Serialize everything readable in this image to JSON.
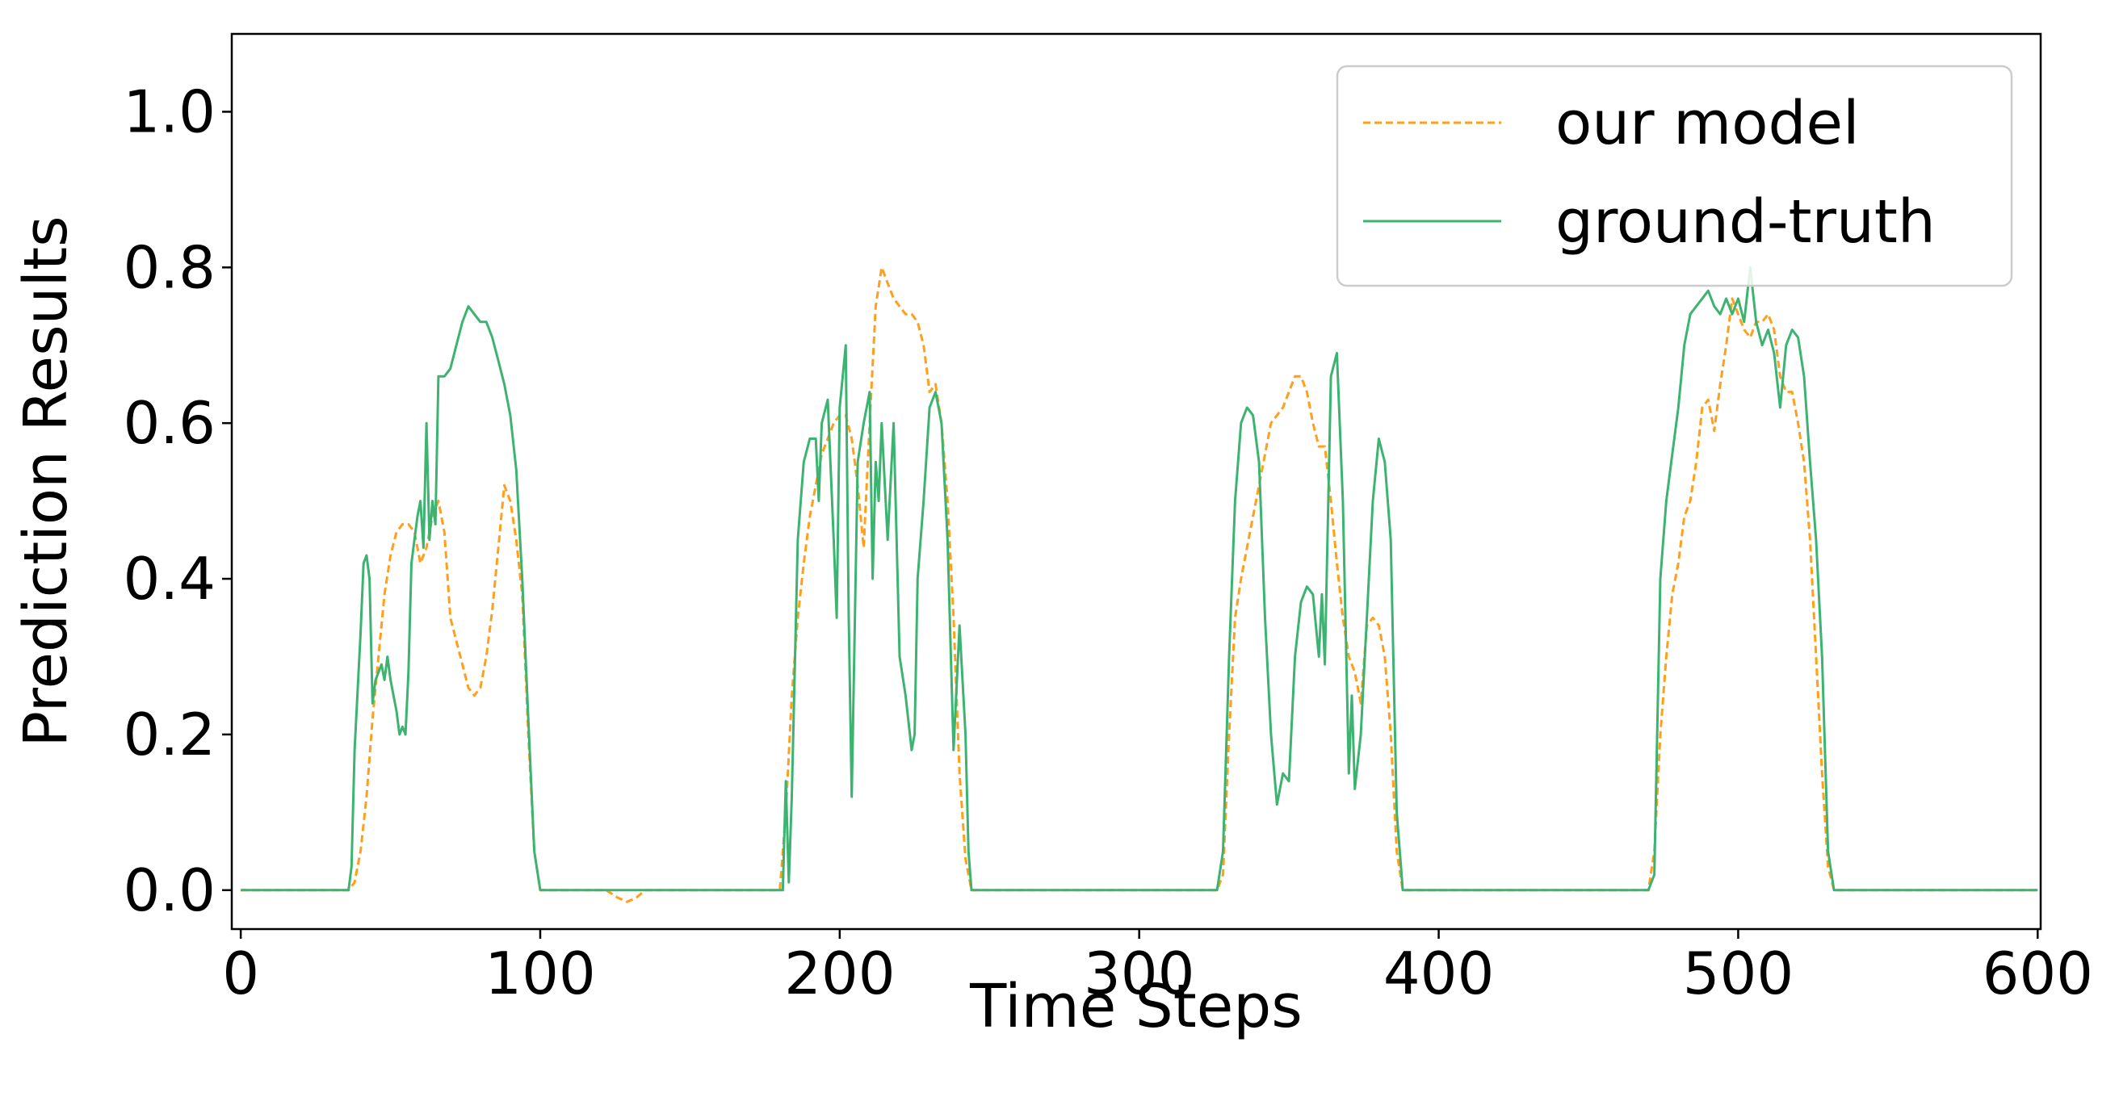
{
  "chart_data": {
    "type": "line",
    "title": "",
    "xlabel": "Time Steps",
    "ylabel": "Prediction Results",
    "xlim": [
      -3,
      601
    ],
    "ylim": [
      -0.05,
      1.1
    ],
    "xticks": [
      0,
      100,
      200,
      300,
      400,
      500,
      600
    ],
    "xtick_labels": [
      "0",
      "100",
      "200",
      "300",
      "400",
      "500",
      "600"
    ],
    "yticks": [
      0.0,
      0.2,
      0.4,
      0.6,
      0.8,
      1.0
    ],
    "ytick_labels": [
      "0.0",
      "0.2",
      "0.4",
      "0.6",
      "0.8",
      "1.0"
    ],
    "grid": false,
    "legend_position": "top-right",
    "series": [
      {
        "name": "our model",
        "color": "#ff9f1c",
        "style": "dashed",
        "points": [
          [
            0,
            0
          ],
          [
            36,
            0
          ],
          [
            38,
            0.01
          ],
          [
            40,
            0.05
          ],
          [
            42,
            0.12
          ],
          [
            44,
            0.22
          ],
          [
            46,
            0.3
          ],
          [
            48,
            0.38
          ],
          [
            50,
            0.43
          ],
          [
            52,
            0.46
          ],
          [
            54,
            0.47
          ],
          [
            56,
            0.47
          ],
          [
            58,
            0.46
          ],
          [
            60,
            0.42
          ],
          [
            62,
            0.44
          ],
          [
            64,
            0.48
          ],
          [
            66,
            0.5
          ],
          [
            68,
            0.46
          ],
          [
            70,
            0.35
          ],
          [
            72,
            0.32
          ],
          [
            74,
            0.29
          ],
          [
            76,
            0.26
          ],
          [
            78,
            0.25
          ],
          [
            80,
            0.26
          ],
          [
            82,
            0.3
          ],
          [
            84,
            0.36
          ],
          [
            86,
            0.44
          ],
          [
            88,
            0.52
          ],
          [
            90,
            0.5
          ],
          [
            92,
            0.45
          ],
          [
            94,
            0.38
          ],
          [
            96,
            0.2
          ],
          [
            98,
            0.05
          ],
          [
            100,
            0
          ],
          [
            122,
            0
          ],
          [
            126,
            -0.01
          ],
          [
            129,
            -0.015
          ],
          [
            132,
            -0.01
          ],
          [
            135,
            0
          ],
          [
            180,
            0
          ],
          [
            182,
            0.1
          ],
          [
            184,
            0.25
          ],
          [
            186,
            0.35
          ],
          [
            188,
            0.42
          ],
          [
            190,
            0.48
          ],
          [
            192,
            0.52
          ],
          [
            194,
            0.56
          ],
          [
            196,
            0.58
          ],
          [
            198,
            0.6
          ],
          [
            200,
            0.61
          ],
          [
            202,
            0.61
          ],
          [
            204,
            0.58
          ],
          [
            206,
            0.52
          ],
          [
            208,
            0.44
          ],
          [
            210,
            0.6
          ],
          [
            212,
            0.75
          ],
          [
            214,
            0.8
          ],
          [
            216,
            0.78
          ],
          [
            218,
            0.76
          ],
          [
            220,
            0.75
          ],
          [
            222,
            0.74
          ],
          [
            224,
            0.74
          ],
          [
            226,
            0.73
          ],
          [
            228,
            0.7
          ],
          [
            230,
            0.64
          ],
          [
            232,
            0.65
          ],
          [
            234,
            0.6
          ],
          [
            236,
            0.5
          ],
          [
            238,
            0.35
          ],
          [
            240,
            0.15
          ],
          [
            242,
            0.04
          ],
          [
            244,
            0
          ],
          [
            326,
            0
          ],
          [
            328,
            0.02
          ],
          [
            330,
            0.2
          ],
          [
            332,
            0.35
          ],
          [
            334,
            0.4
          ],
          [
            336,
            0.44
          ],
          [
            338,
            0.48
          ],
          [
            340,
            0.52
          ],
          [
            342,
            0.56
          ],
          [
            344,
            0.6
          ],
          [
            346,
            0.61
          ],
          [
            348,
            0.62
          ],
          [
            350,
            0.64
          ],
          [
            352,
            0.66
          ],
          [
            354,
            0.66
          ],
          [
            356,
            0.64
          ],
          [
            358,
            0.6
          ],
          [
            360,
            0.57
          ],
          [
            362,
            0.57
          ],
          [
            364,
            0.5
          ],
          [
            366,
            0.42
          ],
          [
            368,
            0.35
          ],
          [
            370,
            0.3
          ],
          [
            372,
            0.28
          ],
          [
            374,
            0.24
          ],
          [
            376,
            0.34
          ],
          [
            378,
            0.35
          ],
          [
            380,
            0.34
          ],
          [
            382,
            0.3
          ],
          [
            384,
            0.2
          ],
          [
            386,
            0.05
          ],
          [
            388,
            0
          ],
          [
            470,
            0
          ],
          [
            472,
            0.05
          ],
          [
            474,
            0.2
          ],
          [
            476,
            0.3
          ],
          [
            478,
            0.38
          ],
          [
            480,
            0.42
          ],
          [
            482,
            0.48
          ],
          [
            484,
            0.5
          ],
          [
            486,
            0.55
          ],
          [
            488,
            0.62
          ],
          [
            490,
            0.63
          ],
          [
            492,
            0.59
          ],
          [
            494,
            0.65
          ],
          [
            496,
            0.7
          ],
          [
            498,
            0.76
          ],
          [
            500,
            0.74
          ],
          [
            502,
            0.72
          ],
          [
            504,
            0.71
          ],
          [
            506,
            0.73
          ],
          [
            508,
            0.73
          ],
          [
            510,
            0.74
          ],
          [
            512,
            0.72
          ],
          [
            514,
            0.66
          ],
          [
            516,
            0.64
          ],
          [
            518,
            0.64
          ],
          [
            520,
            0.6
          ],
          [
            522,
            0.55
          ],
          [
            524,
            0.45
          ],
          [
            526,
            0.3
          ],
          [
            528,
            0.15
          ],
          [
            530,
            0.03
          ],
          [
            532,
            0
          ],
          [
            600,
            0
          ]
        ]
      },
      {
        "name": "ground-truth",
        "color": "#3cb371",
        "style": "solid",
        "points": [
          [
            0,
            0
          ],
          [
            36,
            0
          ],
          [
            37,
            0.03
          ],
          [
            38,
            0.18
          ],
          [
            40,
            0.33
          ],
          [
            41,
            0.42
          ],
          [
            42,
            0.43
          ],
          [
            43,
            0.4
          ],
          [
            44,
            0.24
          ],
          [
            45,
            0.27
          ],
          [
            46,
            0.28
          ],
          [
            47,
            0.29
          ],
          [
            48,
            0.27
          ],
          [
            49,
            0.3
          ],
          [
            50,
            0.27
          ],
          [
            51,
            0.25
          ],
          [
            52,
            0.23
          ],
          [
            53,
            0.2
          ],
          [
            54,
            0.21
          ],
          [
            55,
            0.2
          ],
          [
            56,
            0.28
          ],
          [
            57,
            0.42
          ],
          [
            58,
            0.45
          ],
          [
            59,
            0.48
          ],
          [
            60,
            0.5
          ],
          [
            61,
            0.44
          ],
          [
            62,
            0.6
          ],
          [
            63,
            0.45
          ],
          [
            64,
            0.5
          ],
          [
            65,
            0.47
          ],
          [
            66,
            0.66
          ],
          [
            68,
            0.66
          ],
          [
            70,
            0.67
          ],
          [
            72,
            0.7
          ],
          [
            74,
            0.73
          ],
          [
            76,
            0.75
          ],
          [
            78,
            0.74
          ],
          [
            80,
            0.73
          ],
          [
            82,
            0.73
          ],
          [
            84,
            0.71
          ],
          [
            86,
            0.68
          ],
          [
            88,
            0.65
          ],
          [
            90,
            0.61
          ],
          [
            92,
            0.54
          ],
          [
            94,
            0.4
          ],
          [
            96,
            0.22
          ],
          [
            98,
            0.05
          ],
          [
            100,
            0
          ],
          [
            181,
            0
          ],
          [
            182,
            0.14
          ],
          [
            183,
            0.01
          ],
          [
            184,
            0.12
          ],
          [
            186,
            0.45
          ],
          [
            188,
            0.55
          ],
          [
            190,
            0.58
          ],
          [
            192,
            0.58
          ],
          [
            193,
            0.5
          ],
          [
            194,
            0.6
          ],
          [
            196,
            0.63
          ],
          [
            198,
            0.45
          ],
          [
            199,
            0.35
          ],
          [
            200,
            0.62
          ],
          [
            202,
            0.7
          ],
          [
            203,
            0.35
          ],
          [
            204,
            0.12
          ],
          [
            206,
            0.55
          ],
          [
            208,
            0.6
          ],
          [
            210,
            0.64
          ],
          [
            211,
            0.4
          ],
          [
            212,
            0.55
          ],
          [
            213,
            0.5
          ],
          [
            214,
            0.6
          ],
          [
            216,
            0.45
          ],
          [
            218,
            0.6
          ],
          [
            220,
            0.3
          ],
          [
            222,
            0.25
          ],
          [
            224,
            0.18
          ],
          [
            225,
            0.2
          ],
          [
            226,
            0.4
          ],
          [
            228,
            0.5
          ],
          [
            230,
            0.62
          ],
          [
            232,
            0.64
          ],
          [
            234,
            0.6
          ],
          [
            236,
            0.45
          ],
          [
            238,
            0.18
          ],
          [
            240,
            0.34
          ],
          [
            242,
            0.2
          ],
          [
            243,
            0.05
          ],
          [
            244,
            0
          ],
          [
            326,
            0
          ],
          [
            328,
            0.05
          ],
          [
            330,
            0.3
          ],
          [
            332,
            0.5
          ],
          [
            334,
            0.6
          ],
          [
            336,
            0.62
          ],
          [
            338,
            0.61
          ],
          [
            340,
            0.55
          ],
          [
            342,
            0.35
          ],
          [
            344,
            0.2
          ],
          [
            346,
            0.11
          ],
          [
            348,
            0.15
          ],
          [
            350,
            0.14
          ],
          [
            352,
            0.3
          ],
          [
            354,
            0.37
          ],
          [
            356,
            0.39
          ],
          [
            358,
            0.38
          ],
          [
            360,
            0.3
          ],
          [
            361,
            0.38
          ],
          [
            362,
            0.29
          ],
          [
            364,
            0.66
          ],
          [
            366,
            0.69
          ],
          [
            368,
            0.5
          ],
          [
            370,
            0.15
          ],
          [
            371,
            0.25
          ],
          [
            372,
            0.13
          ],
          [
            374,
            0.2
          ],
          [
            376,
            0.35
          ],
          [
            378,
            0.5
          ],
          [
            380,
            0.58
          ],
          [
            382,
            0.55
          ],
          [
            384,
            0.45
          ],
          [
            386,
            0.1
          ],
          [
            388,
            0
          ],
          [
            470,
            0
          ],
          [
            472,
            0.02
          ],
          [
            474,
            0.4
          ],
          [
            476,
            0.5
          ],
          [
            478,
            0.56
          ],
          [
            480,
            0.62
          ],
          [
            482,
            0.7
          ],
          [
            484,
            0.74
          ],
          [
            486,
            0.75
          ],
          [
            488,
            0.76
          ],
          [
            490,
            0.77
          ],
          [
            492,
            0.75
          ],
          [
            494,
            0.74
          ],
          [
            496,
            0.76
          ],
          [
            498,
            0.74
          ],
          [
            500,
            0.76
          ],
          [
            502,
            0.73
          ],
          [
            504,
            0.8
          ],
          [
            506,
            0.73
          ],
          [
            508,
            0.7
          ],
          [
            510,
            0.72
          ],
          [
            512,
            0.69
          ],
          [
            514,
            0.62
          ],
          [
            516,
            0.7
          ],
          [
            518,
            0.72
          ],
          [
            520,
            0.71
          ],
          [
            522,
            0.66
          ],
          [
            524,
            0.55
          ],
          [
            526,
            0.45
          ],
          [
            528,
            0.3
          ],
          [
            530,
            0.05
          ],
          [
            532,
            0
          ],
          [
            600,
            0
          ]
        ]
      }
    ]
  }
}
